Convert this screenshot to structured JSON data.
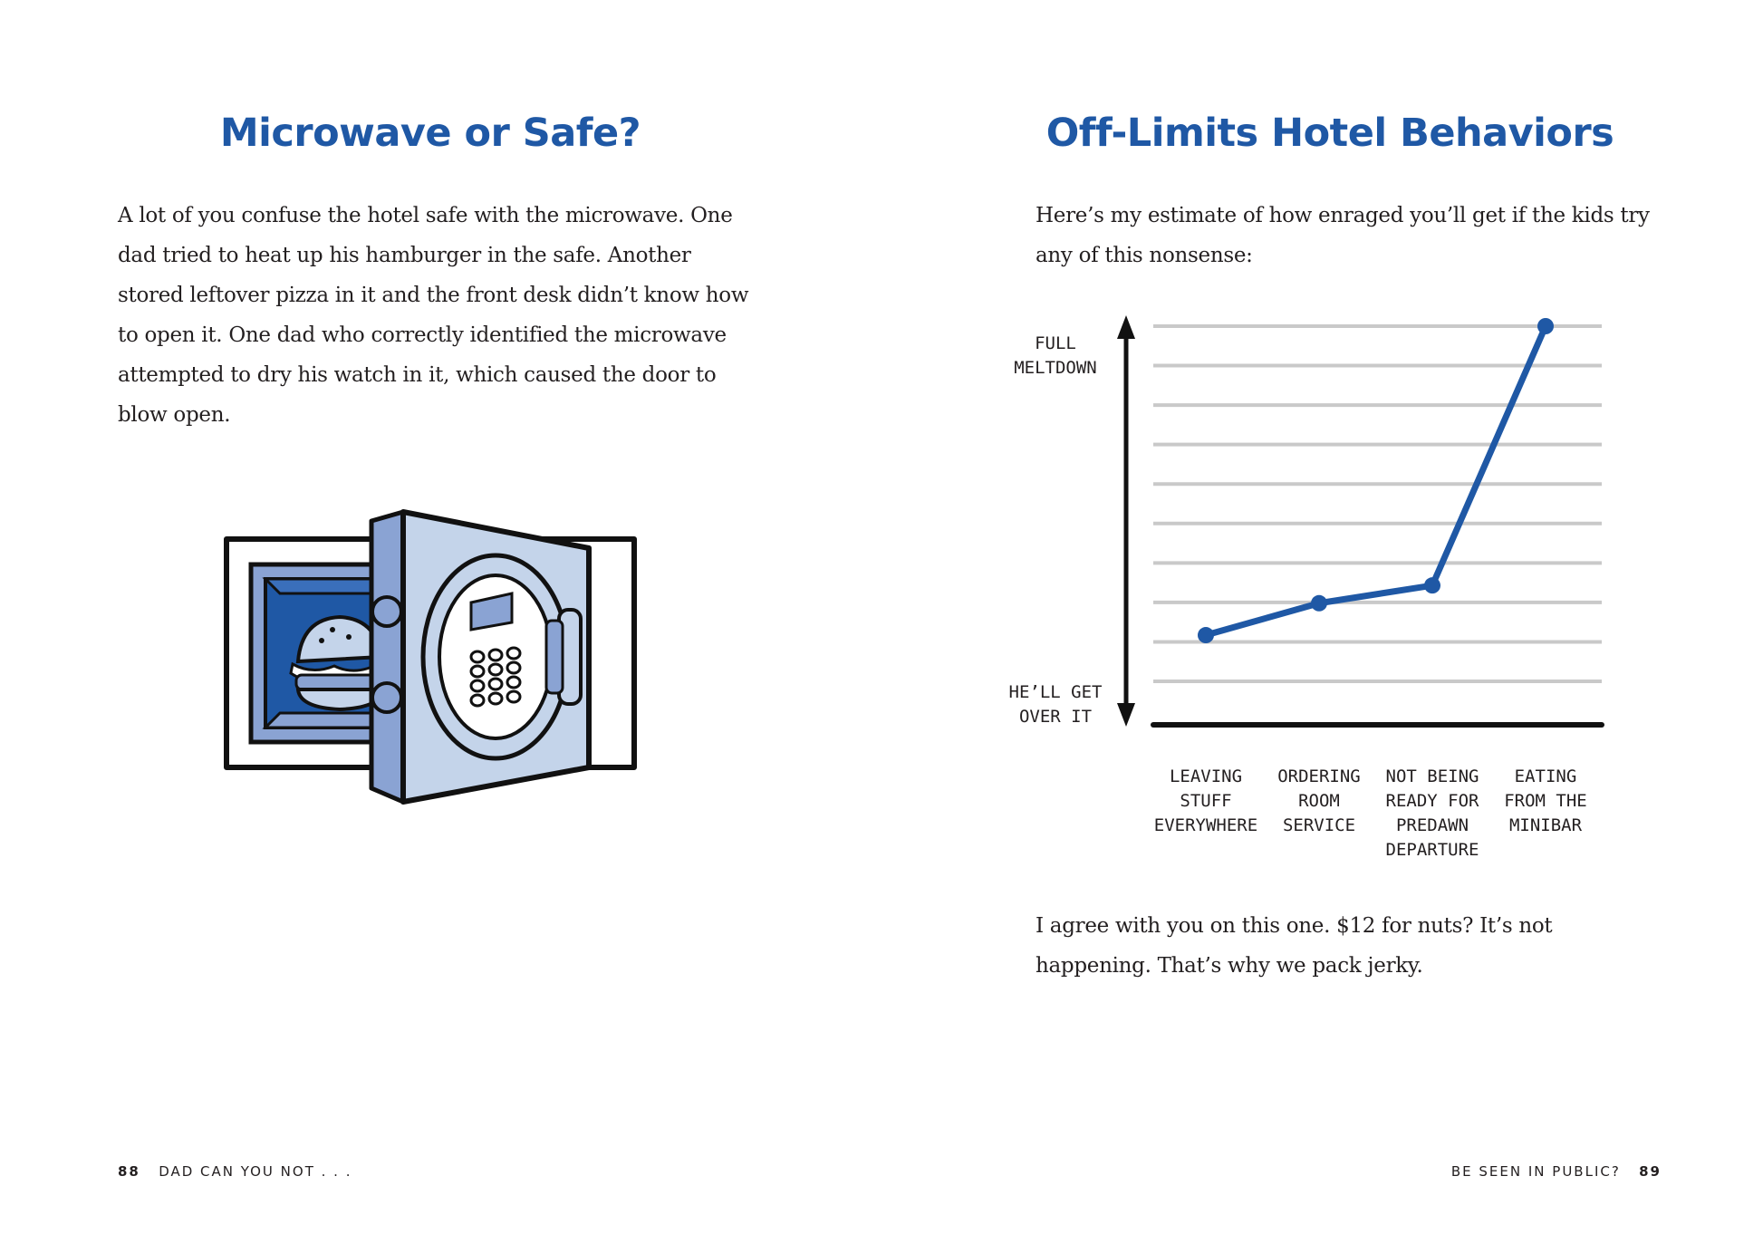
{
  "left_page": {
    "title": "Microwave or Safe?",
    "body": "A lot of you confuse the hotel safe with the microwave. One dad tried to heat up his hamburger in the safe. Another stored leftover pizza in it and the front desk didn’t know how to open it. One dad who correctly identified the microwave attempted to dry his watch in it, which caused the door to blow open.",
    "page_number": "88",
    "running_head": "DAD CAN YOU NOT . . ."
  },
  "right_page": {
    "title": "Off-Limits Hotel Behaviors",
    "intro": "Here’s my estimate of how enraged you’ll get if the kids try any of this nonsense:",
    "outro": "I agree with you on this one. $12 for nuts? It’s not happening. That’s why we pack jerky.",
    "page_number": "89",
    "running_head": "BE SEEN IN PUBLIC?"
  },
  "colors": {
    "heading_blue": "#1f58a5",
    "line_blue": "#1f58a5",
    "safe_light": "#c4d4ea",
    "safe_mid": "#8aa3d3",
    "safe_dark": "#1f58a5"
  },
  "chart_data": {
    "type": "line",
    "title": "",
    "y_axis_labels": {
      "top": [
        "FULL",
        "MELTDOWN"
      ],
      "bottom": [
        "HE’LL GET",
        "OVER IT"
      ]
    },
    "categories": [
      [
        "LEAVING",
        "STUFF",
        "EVERYWHERE"
      ],
      [
        "ORDERING",
        "ROOM",
        "SERVICE"
      ],
      [
        "NOT BEING",
        "READY FOR",
        "PREDAWN",
        "DEPARTURE"
      ],
      [
        "EATING",
        "FROM THE",
        "MINIBAR"
      ]
    ],
    "values": [
      1.3,
      2.2,
      2.7,
      10
    ],
    "ylim": [
      0,
      10
    ],
    "grid": true
  }
}
